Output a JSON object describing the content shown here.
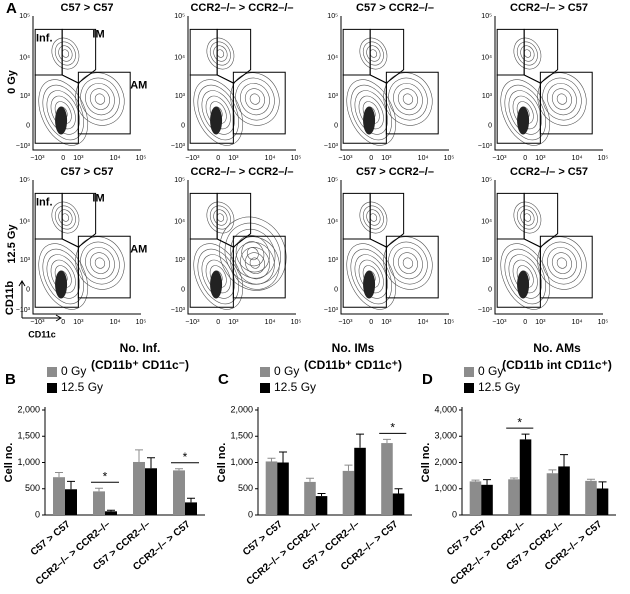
{
  "panel_a": {
    "label": "A",
    "row_labels": [
      "0 Gy",
      "12.5 Gy"
    ],
    "column_titles": [
      [
        "C57 > C57",
        "CCR2–/– > CCR2–/–",
        "C57 > CCR2–/–",
        "CCR2–/– > C57"
      ],
      [
        "C57 > C57",
        "CCR2–/– > CCR2–/–",
        "C57 > CCR2–/–",
        "CCR2–/– > C57"
      ]
    ],
    "gate_labels": [
      "Inf.",
      "IM",
      "AM"
    ],
    "x_axis_label": "CD11c",
    "y_axis_label": "CD11b",
    "x_tick_labels": [
      "−10³",
      "0",
      "10³",
      "10⁴",
      "10⁵"
    ],
    "y_tick_labels": [
      "10⁵",
      "10⁴",
      "10³",
      "0",
      "−10³"
    ]
  },
  "chart_data": [
    {
      "type": "bar",
      "panel_label": "B",
      "title": "No. Inf.",
      "subtitle": "(CD11b⁺ CD11c⁻)",
      "y_label": "Cell no.",
      "categories": [
        "C57 > C57",
        "CCR2–/– > CCR2–/–",
        "C57 > CCR2–/–",
        "CCR2–/– > C57"
      ],
      "series": [
        {
          "name": "0 Gy",
          "color": "#8c8c8c",
          "values": [
            720,
            450,
            1010,
            850
          ],
          "errors": [
            90,
            60,
            230,
            30
          ]
        },
        {
          "name": "12.5 Gy",
          "color": "#000000",
          "values": [
            490,
            70,
            890,
            240
          ],
          "errors": [
            150,
            20,
            200,
            80
          ]
        }
      ],
      "significance": [
        null,
        "*",
        null,
        "*"
      ],
      "ylim": [
        0,
        2000
      ],
      "yticks": [
        0,
        500,
        {
          "value": 1000,
          "label": "1,000"
        },
        {
          "value": 1500,
          "label": "1,500"
        },
        {
          "value": 2000,
          "label": "2,000"
        }
      ]
    },
    {
      "type": "bar",
      "panel_label": "C",
      "title": "No. IMs",
      "subtitle": "(CD11b⁺ CD11c⁺)",
      "y_label": "Cell no.",
      "categories": [
        "C57 > C57",
        "CCR2–/– > CCR2–/–",
        "C57 > CCR2–/–",
        "CCR2–/– > C57"
      ],
      "series": [
        {
          "name": "0 Gy",
          "color": "#8c8c8c",
          "values": [
            1020,
            630,
            840,
            1370
          ],
          "errors": [
            60,
            70,
            110,
            70
          ]
        },
        {
          "name": "12.5 Gy",
          "color": "#000000",
          "values": [
            1000,
            360,
            1280,
            410
          ],
          "errors": [
            200,
            50,
            260,
            90
          ]
        }
      ],
      "significance": [
        null,
        null,
        null,
        "*"
      ],
      "ylim": [
        0,
        2000
      ],
      "yticks": [
        0,
        500,
        {
          "value": 1000,
          "label": "1,000"
        },
        {
          "value": 1500,
          "label": "1,500"
        },
        {
          "value": 2000,
          "label": "2,000"
        }
      ]
    },
    {
      "type": "bar",
      "panel_label": "D",
      "title": "No. AMs",
      "subtitle": "(CD11b int  CD11c⁺)",
      "y_label": "Cell no.",
      "categories": [
        "C57 > C57",
        "CCR2–/– > CCR2–/–",
        "C57 > CCR2–/–",
        "CCR2–/– > C57"
      ],
      "series": [
        {
          "name": "0 Gy",
          "color": "#8c8c8c",
          "values": [
            1280,
            1360,
            1590,
            1300
          ],
          "errors": [
            50,
            50,
            130,
            60
          ]
        },
        {
          "name": "12.5 Gy",
          "color": "#000000",
          "values": [
            1150,
            2880,
            1850,
            1010
          ],
          "errors": [
            200,
            200,
            450,
            250
          ]
        }
      ],
      "significance": [
        null,
        "*",
        null,
        null
      ],
      "ylim": [
        0,
        4000
      ],
      "yticks": [
        0,
        {
          "value": 1000,
          "label": "1,000"
        },
        {
          "value": 2000,
          "label": "2,000"
        },
        {
          "value": 3000,
          "label": "3,000"
        },
        {
          "value": 4000,
          "label": "4,000"
        }
      ]
    }
  ]
}
